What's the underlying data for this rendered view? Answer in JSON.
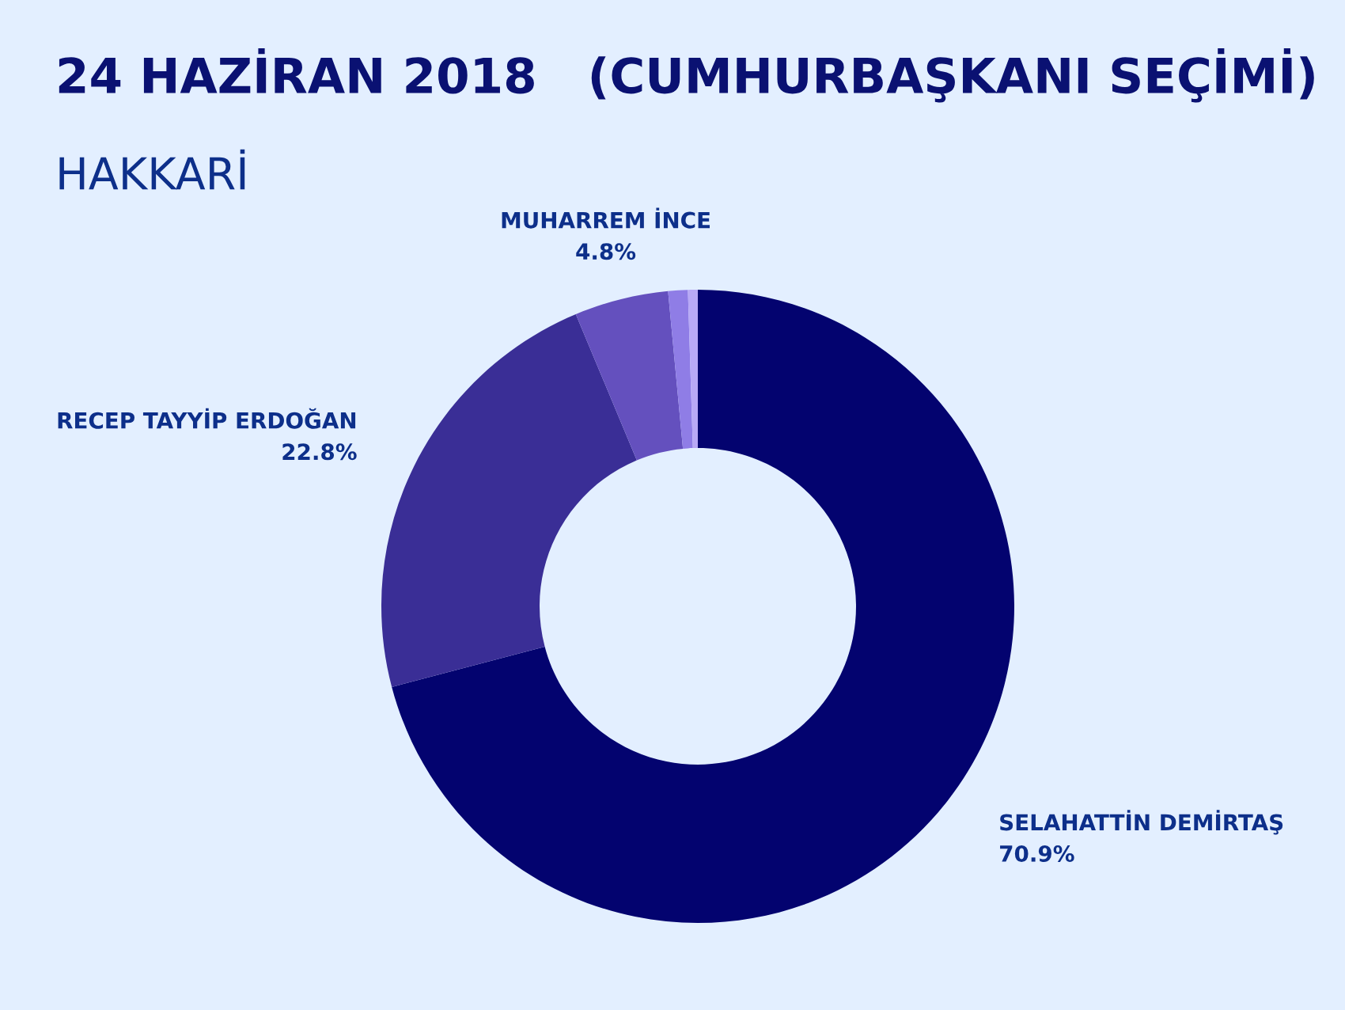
{
  "chart_data": {
    "type": "donut",
    "title": "24 HAZİRAN 2018   (CUMHURBAŞKANI SEÇİMİ)",
    "subtitle": "HAKKARİ",
    "categories": [
      "SELAHATTİN DEMİRTAŞ",
      "RECEP TAYYİP ERDOĞAN",
      "MUHARREM İNCE",
      null,
      null
    ],
    "values": [
      70.9,
      22.8,
      4.8,
      1.0,
      0.5
    ],
    "colors": [
      "#03036f",
      "#3a2e96",
      "#6450be",
      "#8f7de6",
      "#b8a9f6"
    ],
    "value_labels": [
      "70.9%",
      "22.8%",
      "4.8%",
      null,
      null
    ]
  }
}
